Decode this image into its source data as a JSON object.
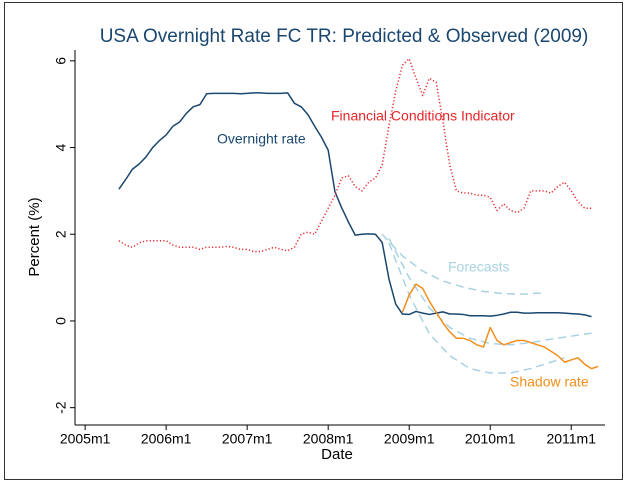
{
  "chart_data": {
    "type": "line",
    "title": "USA Overnight Rate FC TR: Predicted & Observed (2009)",
    "x_label": "Date",
    "y_label": "Percent (%)",
    "xlim": [
      538.5,
      617
    ],
    "xticks": [
      {
        "value": 540,
        "label": "2005m1"
      },
      {
        "value": 552,
        "label": "2006m1"
      },
      {
        "value": 564,
        "label": "2007m1"
      },
      {
        "value": 576,
        "label": "2008m1"
      },
      {
        "value": 588,
        "label": "2009m1"
      },
      {
        "value": 600,
        "label": "2010m1"
      },
      {
        "value": 612,
        "label": "2011m1"
      }
    ],
    "ylim": [
      -2.4,
      6.25
    ],
    "yticks": [
      -2,
      0,
      2,
      4,
      6
    ],
    "grid": false,
    "series": [
      {
        "name": "Overnight rate",
        "color": "#1a476f",
        "style": "solid",
        "x": [
          545,
          546,
          547,
          548,
          549,
          550,
          551,
          552,
          553,
          554,
          555,
          556,
          557,
          558,
          559,
          560,
          561,
          562,
          563,
          564,
          565,
          566,
          567,
          568,
          569,
          570,
          571,
          572,
          573,
          574,
          575,
          576,
          577,
          578,
          579,
          580,
          581,
          582,
          583,
          584,
          585,
          586,
          587,
          588,
          589,
          590,
          591,
          592,
          593,
          594,
          595,
          596,
          597,
          598,
          599,
          600,
          601,
          602,
          603,
          604,
          605,
          606,
          607,
          608,
          609,
          610,
          611,
          612,
          613,
          614,
          615
        ],
        "values": [
          3.04,
          3.26,
          3.5,
          3.62,
          3.78,
          4.0,
          4.16,
          4.29,
          4.49,
          4.59,
          4.79,
          4.94,
          4.99,
          5.24,
          5.25,
          5.25,
          5.25,
          5.25,
          5.24,
          5.25,
          5.26,
          5.26,
          5.25,
          5.25,
          5.25,
          5.26,
          5.02,
          4.94,
          4.76,
          4.49,
          4.24,
          3.94,
          2.98,
          2.61,
          2.28,
          1.98,
          2.0,
          2.01,
          2.0,
          1.81,
          0.97,
          0.39,
          0.16,
          0.15,
          0.22,
          0.18,
          0.15,
          0.18,
          0.21,
          0.16,
          0.16,
          0.15,
          0.12,
          0.12,
          0.12,
          0.11,
          0.13,
          0.16,
          0.2,
          0.2,
          0.18,
          0.18,
          0.19,
          0.19,
          0.19,
          0.19,
          0.18,
          0.17,
          0.16,
          0.14,
          0.1
        ]
      },
      {
        "name": "Financial Conditions Indicator",
        "color": "#e8252a",
        "style": "dotted",
        "x": [
          545,
          546,
          547,
          548,
          549,
          550,
          551,
          552,
          553,
          554,
          555,
          556,
          557,
          558,
          559,
          560,
          561,
          562,
          563,
          564,
          565,
          566,
          567,
          568,
          569,
          570,
          571,
          572,
          573,
          574,
          575,
          576,
          577,
          578,
          579,
          580,
          581,
          582,
          583,
          584,
          585,
          586,
          587,
          588,
          589,
          590,
          591,
          592,
          593,
          594,
          595,
          596,
          597,
          598,
          599,
          600,
          601,
          602,
          603,
          604,
          605,
          606,
          607,
          608,
          609,
          610,
          611,
          612,
          613,
          614,
          615
        ],
        "values": [
          1.85,
          1.75,
          1.7,
          1.8,
          1.85,
          1.85,
          1.85,
          1.85,
          1.75,
          1.7,
          1.7,
          1.7,
          1.65,
          1.7,
          1.7,
          1.7,
          1.72,
          1.7,
          1.65,
          1.65,
          1.6,
          1.6,
          1.65,
          1.7,
          1.65,
          1.62,
          1.7,
          2.0,
          2.05,
          2.0,
          2.3,
          2.6,
          2.9,
          3.3,
          3.35,
          3.1,
          3.0,
          3.2,
          3.3,
          3.6,
          4.5,
          5.3,
          5.9,
          6.05,
          5.6,
          5.2,
          5.6,
          5.5,
          4.6,
          3.6,
          3.0,
          2.95,
          2.95,
          2.9,
          2.9,
          2.85,
          2.55,
          2.7,
          2.55,
          2.5,
          2.6,
          3.0,
          3.0,
          3.0,
          2.95,
          3.1,
          3.2,
          3.0,
          2.75,
          2.6,
          2.6
        ]
      },
      {
        "name": "Forecasts",
        "color": "#a8d2e4",
        "style": "dashed",
        "x": [
          584,
          587,
          590,
          593,
          596,
          599,
          602,
          605,
          608
        ],
        "values": [
          2.0,
          1.5,
          1.15,
          0.92,
          0.78,
          0.68,
          0.63,
          0.62,
          0.65
        ]
      },
      {
        "color": "#a8d2e4",
        "style": "dashed",
        "x": [
          585,
          588,
          591,
          594,
          597,
          600,
          603,
          606,
          609,
          612,
          615
        ],
        "values": [
          1.9,
          1.0,
          0.3,
          -0.15,
          -0.4,
          -0.52,
          -0.55,
          -0.5,
          -0.42,
          -0.35,
          -0.28
        ]
      },
      {
        "color": "#a8d2e4",
        "style": "dashed",
        "x": [
          585,
          588,
          591,
          594,
          597,
          600,
          603,
          606,
          609,
          611
        ],
        "values": [
          1.8,
          0.6,
          -0.3,
          -0.8,
          -1.1,
          -1.2,
          -1.2,
          -1.1,
          -0.95,
          -0.85
        ]
      },
      {
        "name": "Shadow rate",
        "color": "#f28e1c",
        "style": "solid",
        "x": [
          587,
          588,
          589,
          590,
          591,
          592,
          593,
          594,
          595,
          596,
          597,
          598,
          599,
          600,
          601,
          602,
          603,
          604,
          605,
          606,
          607,
          608,
          609,
          610,
          611,
          612,
          613,
          614,
          615,
          616
        ],
        "values": [
          0.2,
          0.6,
          0.85,
          0.75,
          0.45,
          0.2,
          -0.05,
          -0.25,
          -0.4,
          -0.4,
          -0.45,
          -0.55,
          -0.6,
          -0.15,
          -0.45,
          -0.55,
          -0.5,
          -0.45,
          -0.45,
          -0.5,
          -0.55,
          -0.6,
          -0.7,
          -0.8,
          -0.95,
          -0.9,
          -0.85,
          -1.0,
          -1.1,
          -1.05
        ]
      }
    ]
  }
}
